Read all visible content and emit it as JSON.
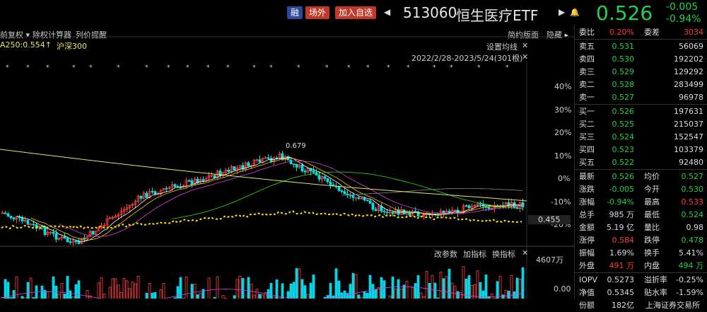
{
  "header": {
    "tag_rong": "融",
    "tag_changwai": "场外",
    "tag_add": "加入自选",
    "code": "513060",
    "name": "恒生医疗ETF",
    "price": "0.526",
    "change": "-0.005",
    "change_pct": "-0.94%",
    "prev_icon": "triangle-left-icon",
    "next_icon": "triangle-right-icon",
    "bell_icon": "bell-icon"
  },
  "toolbar": {
    "adjust": "前复权",
    "rights_calc": "除权计算器",
    "column_alert": "列价提醒",
    "simple_layout": "简约版面",
    "hide": "隐藏",
    "ma_label": "A250:0.554↑",
    "index_label": "沪深300",
    "settings": "设置均线",
    "date_range": "2022/2/28-2023/5/24(301根)",
    "peak_label": "0.679",
    "cursor_price": "0.455"
  },
  "axis": {
    "pct_ticks": [
      "40%",
      "30%",
      "20%",
      "10%",
      "0%",
      "-10%",
      "-20%"
    ],
    "vol_top": "4607万",
    "vol_zero": "0.00"
  },
  "volume_toolbar": {
    "change_params": "改参数",
    "add_indicator": "加指标",
    "switch_indicator": "换指标"
  },
  "quote": {
    "weibi_label": "委比",
    "weibi": "0.20%",
    "weicha_label": "委差",
    "weicha": "3034",
    "asks": [
      {
        "label": "卖五",
        "price": "0.531",
        "vol": "56069"
      },
      {
        "label": "卖四",
        "price": "0.530",
        "vol": "192202"
      },
      {
        "label": "卖三",
        "price": "0.529",
        "vol": "129292"
      },
      {
        "label": "卖二",
        "price": "0.528",
        "vol": "283499"
      },
      {
        "label": "卖一",
        "price": "0.527",
        "vol": "96978"
      }
    ],
    "bids": [
      {
        "label": "买一",
        "price": "0.526",
        "vol": "197631"
      },
      {
        "label": "买二",
        "price": "0.525",
        "vol": "215037"
      },
      {
        "label": "买三",
        "price": "0.524",
        "vol": "152547"
      },
      {
        "label": "买四",
        "price": "0.523",
        "vol": "103379"
      },
      {
        "label": "买五",
        "price": "0.522",
        "vol": "92480"
      }
    ],
    "stats": [
      {
        "l1": "最新",
        "v1": "0.526",
        "c1": "green",
        "l2": "均价",
        "v2": "0.527",
        "c2": "green"
      },
      {
        "l1": "涨跌",
        "v1": "-0.005",
        "c1": "green",
        "l2": "今开",
        "v2": "0.530",
        "c2": "green"
      },
      {
        "l1": "涨幅",
        "v1": "-0.94%",
        "c1": "green",
        "l2": "最高",
        "v2": "0.533",
        "c2": "red"
      },
      {
        "l1": "总手",
        "v1": "985 万",
        "c1": "white",
        "l2": "最低",
        "v2": "0.524",
        "c2": "green"
      },
      {
        "l1": "金额",
        "v1": "5.19 亿",
        "c1": "white",
        "l2": "量比",
        "v2": "0.98",
        "c2": "white"
      },
      {
        "l1": "涨停",
        "v1": "0.584",
        "c1": "red",
        "l2": "跌停",
        "v2": "0.478",
        "c2": "green"
      },
      {
        "l1": "振幅",
        "v1": "1.69%",
        "c1": "white",
        "l2": "换手",
        "v2": "5.41%",
        "c2": "white"
      },
      {
        "l1": "外盘",
        "v1": "491 万",
        "c1": "red",
        "l2": "内盘",
        "v2": "494 万",
        "c2": "green"
      }
    ],
    "extra": [
      {
        "l1": "IOPV",
        "v1": "0.5273",
        "c1": "white",
        "l2": "溢折率",
        "v2": "-0.25%",
        "c2": "white"
      },
      {
        "l1": "净值",
        "v1": "0.5345",
        "c1": "white",
        "l2": "贴水率",
        "v2": "-1.59%",
        "c2": "white"
      },
      {
        "l1": "份额",
        "v1": "182亿",
        "c1": "white",
        "l2": "",
        "v2": "上海证券交易所",
        "c2": "white"
      }
    ]
  }
}
